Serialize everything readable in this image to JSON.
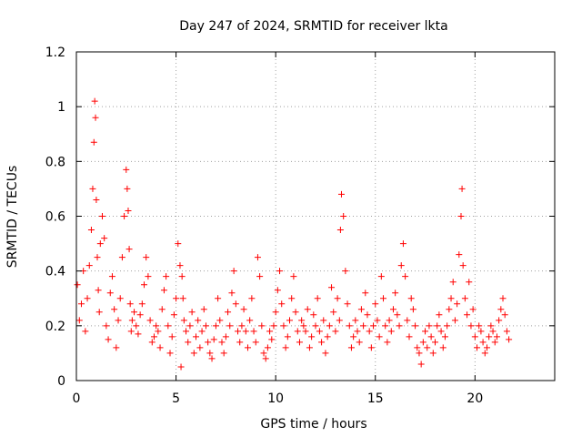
{
  "chart_data": {
    "type": "scatter",
    "title": "Day 247 of 2024, SRMTID for receiver lkta",
    "xlabel": "GPS time / hours",
    "ylabel": "SRMTID / TECUs",
    "xlim": [
      0,
      24
    ],
    "ylim": [
      0,
      1.2
    ],
    "xticks": [
      0,
      5,
      10,
      15,
      20
    ],
    "xtick_labels": [
      "0",
      "5",
      "10",
      "15",
      "20"
    ],
    "yticks": [
      0,
      0.2,
      0.4,
      0.6,
      0.8,
      1,
      1.2
    ],
    "ytick_labels": [
      "0",
      "0.2",
      "0.4",
      "0.6",
      "0.8",
      "1",
      "1.2"
    ],
    "grid": true,
    "marker": "+",
    "series": [
      {
        "name": "SRMTID",
        "color": "#ff0000",
        "x": [
          0.05,
          0.15,
          0.25,
          0.35,
          0.45,
          0.55,
          0.65,
          0.75,
          0.82,
          0.88,
          0.92,
          0.96,
          1.0,
          1.05,
          1.1,
          1.15,
          1.2,
          1.3,
          1.4,
          1.5,
          1.6,
          1.7,
          1.8,
          1.9,
          2.0,
          2.1,
          2.2,
          2.3,
          2.4,
          2.5,
          2.55,
          2.6,
          2.65,
          2.7,
          2.75,
          2.8,
          2.9,
          3.0,
          3.1,
          3.2,
          3.3,
          3.4,
          3.5,
          3.6,
          3.7,
          3.8,
          3.9,
          4.0,
          4.1,
          4.2,
          4.3,
          4.4,
          4.5,
          4.6,
          4.7,
          4.8,
          4.9,
          5.0,
          5.1,
          5.2,
          5.25,
          5.3,
          5.35,
          5.4,
          5.5,
          5.6,
          5.7,
          5.8,
          5.9,
          6.0,
          6.1,
          6.2,
          6.3,
          6.4,
          6.5,
          6.6,
          6.7,
          6.8,
          6.9,
          7.0,
          7.1,
          7.2,
          7.3,
          7.4,
          7.5,
          7.6,
          7.7,
          7.8,
          7.9,
          8.0,
          8.1,
          8.2,
          8.3,
          8.4,
          8.5,
          8.6,
          8.7,
          8.8,
          8.9,
          9.0,
          9.1,
          9.2,
          9.3,
          9.4,
          9.5,
          9.6,
          9.7,
          9.8,
          9.9,
          10.0,
          10.1,
          10.2,
          10.3,
          10.4,
          10.5,
          10.6,
          10.7,
          10.8,
          10.9,
          11.0,
          11.1,
          11.2,
          11.3,
          11.4,
          11.5,
          11.6,
          11.7,
          11.8,
          11.9,
          12.0,
          12.1,
          12.2,
          12.3,
          12.4,
          12.5,
          12.6,
          12.7,
          12.8,
          12.9,
          13.0,
          13.1,
          13.2,
          13.25,
          13.3,
          13.4,
          13.5,
          13.6,
          13.7,
          13.8,
          13.9,
          14.0,
          14.1,
          14.2,
          14.3,
          14.4,
          14.5,
          14.6,
          14.7,
          14.8,
          14.9,
          15.0,
          15.1,
          15.2,
          15.3,
          15.4,
          15.5,
          15.6,
          15.7,
          15.8,
          15.9,
          16.0,
          16.1,
          16.2,
          16.3,
          16.4,
          16.5,
          16.6,
          16.7,
          16.8,
          16.9,
          17.0,
          17.1,
          17.2,
          17.3,
          17.4,
          17.5,
          17.6,
          17.7,
          17.8,
          17.9,
          18.0,
          18.1,
          18.2,
          18.3,
          18.4,
          18.5,
          18.6,
          18.7,
          18.8,
          18.9,
          19.0,
          19.1,
          19.2,
          19.3,
          19.35,
          19.4,
          19.5,
          19.6,
          19.7,
          19.8,
          19.9,
          20.0,
          20.1,
          20.2,
          20.3,
          20.4,
          20.5,
          20.6,
          20.7,
          20.8,
          20.9,
          21.0,
          21.1,
          21.2,
          21.3,
          21.4,
          21.5,
          21.6,
          21.7
        ],
        "y": [
          0.35,
          0.22,
          0.28,
          0.4,
          0.18,
          0.3,
          0.42,
          0.55,
          0.7,
          0.87,
          1.02,
          0.96,
          0.66,
          0.45,
          0.33,
          0.25,
          0.5,
          0.6,
          0.52,
          0.2,
          0.15,
          0.32,
          0.38,
          0.26,
          0.12,
          0.22,
          0.3,
          0.45,
          0.6,
          0.77,
          0.7,
          0.62,
          0.48,
          0.28,
          0.18,
          0.22,
          0.25,
          0.2,
          0.17,
          0.24,
          0.28,
          0.35,
          0.45,
          0.38,
          0.22,
          0.14,
          0.16,
          0.2,
          0.18,
          0.12,
          0.26,
          0.33,
          0.38,
          0.2,
          0.1,
          0.16,
          0.24,
          0.3,
          0.5,
          0.42,
          0.05,
          0.38,
          0.3,
          0.22,
          0.18,
          0.14,
          0.2,
          0.25,
          0.1,
          0.16,
          0.22,
          0.12,
          0.18,
          0.26,
          0.2,
          0.14,
          0.1,
          0.08,
          0.15,
          0.2,
          0.3,
          0.22,
          0.14,
          0.1,
          0.16,
          0.25,
          0.2,
          0.32,
          0.4,
          0.28,
          0.18,
          0.14,
          0.2,
          0.26,
          0.18,
          0.12,
          0.22,
          0.3,
          0.18,
          0.14,
          0.45,
          0.38,
          0.2,
          0.1,
          0.08,
          0.12,
          0.18,
          0.15,
          0.2,
          0.25,
          0.33,
          0.4,
          0.28,
          0.2,
          0.12,
          0.16,
          0.22,
          0.3,
          0.38,
          0.25,
          0.18,
          0.14,
          0.22,
          0.2,
          0.18,
          0.26,
          0.12,
          0.16,
          0.24,
          0.2,
          0.3,
          0.18,
          0.14,
          0.22,
          0.1,
          0.16,
          0.2,
          0.34,
          0.25,
          0.18,
          0.3,
          0.22,
          0.55,
          0.68,
          0.6,
          0.4,
          0.28,
          0.2,
          0.12,
          0.16,
          0.22,
          0.18,
          0.14,
          0.26,
          0.2,
          0.32,
          0.24,
          0.18,
          0.12,
          0.2,
          0.28,
          0.22,
          0.16,
          0.38,
          0.3,
          0.2,
          0.14,
          0.22,
          0.18,
          0.26,
          0.32,
          0.24,
          0.2,
          0.42,
          0.5,
          0.38,
          0.22,
          0.16,
          0.3,
          0.26,
          0.2,
          0.12,
          0.1,
          0.06,
          0.14,
          0.18,
          0.12,
          0.2,
          0.16,
          0.1,
          0.14,
          0.2,
          0.24,
          0.18,
          0.12,
          0.16,
          0.2,
          0.26,
          0.3,
          0.36,
          0.22,
          0.28,
          0.46,
          0.6,
          0.7,
          0.42,
          0.3,
          0.24,
          0.36,
          0.2,
          0.26,
          0.16,
          0.12,
          0.2,
          0.18,
          0.14,
          0.1,
          0.12,
          0.16,
          0.2,
          0.18,
          0.14,
          0.16,
          0.22,
          0.26,
          0.3,
          0.24,
          0.18,
          0.15
        ]
      }
    ]
  }
}
